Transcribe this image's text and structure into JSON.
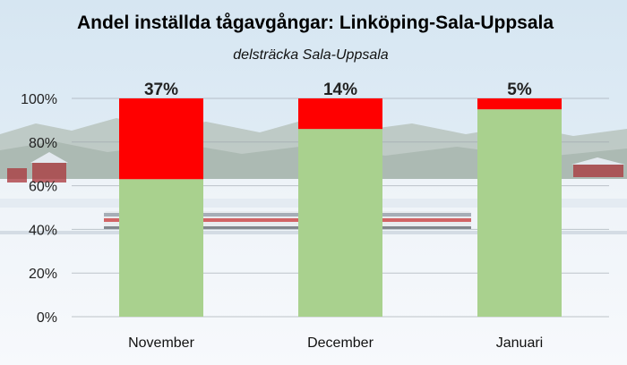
{
  "chart_data": {
    "type": "bar",
    "stacked": true,
    "title": "Andel inställda tågavgångar: Linköping-Sala-Uppsala",
    "subtitle": "delsträcka Sala-Uppsala",
    "categories": [
      "November",
      "December",
      "Januari"
    ],
    "series": [
      {
        "values": [
          63,
          86,
          95
        ],
        "color": "#a9d18e"
      },
      {
        "values": [
          37,
          14,
          5
        ],
        "color": "#ff0000"
      }
    ],
    "data_labels": [
      "37%",
      "14%",
      "5%"
    ],
    "y_ticks": [
      "0%",
      "20%",
      "40%",
      "60%",
      "80%",
      "100%"
    ],
    "ylim": [
      0,
      100
    ],
    "grid": true,
    "legend": "none"
  }
}
